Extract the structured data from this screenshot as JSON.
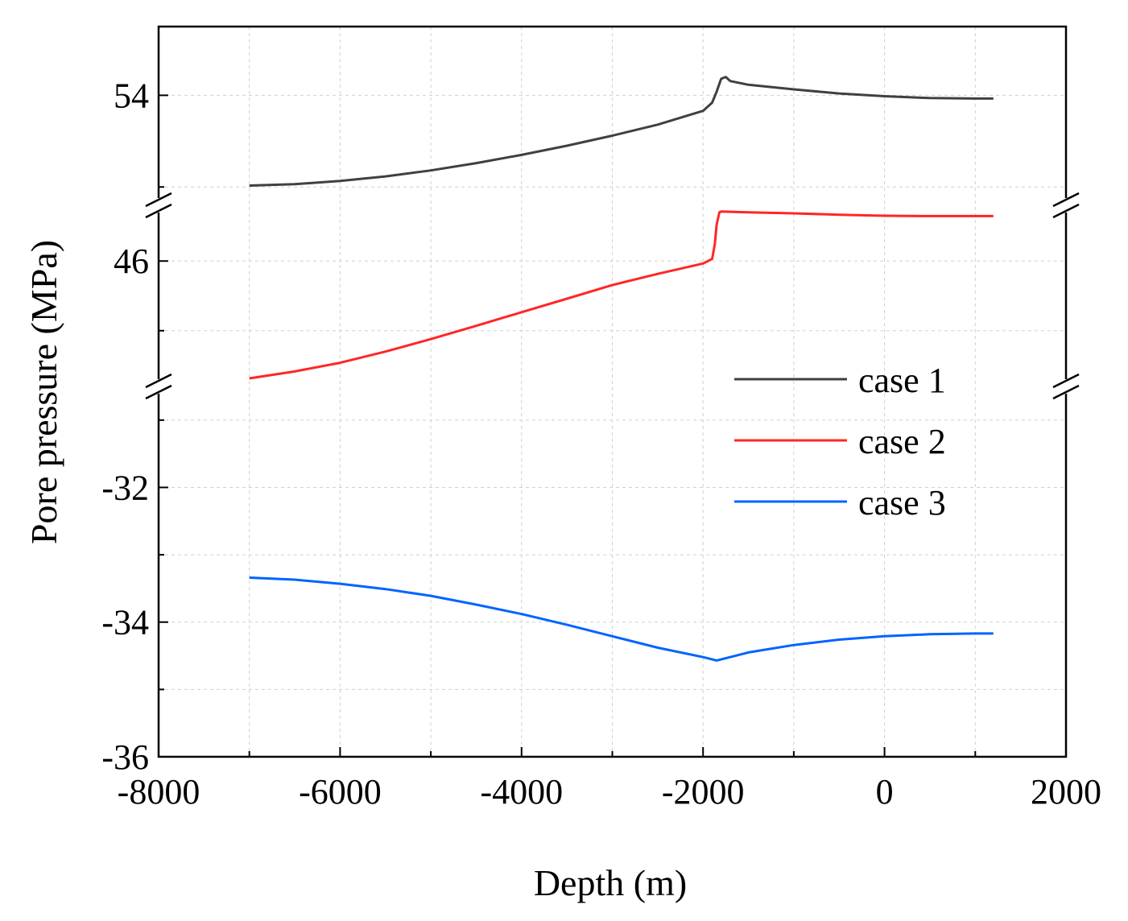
{
  "chart_data": {
    "type": "line",
    "title": "",
    "xlabel": "Depth (m)",
    "ylabel": "Pore pressure (MPa)",
    "xlim": [
      -8000,
      2000
    ],
    "xticks": [
      -8000,
      -6000,
      -4000,
      -2000,
      0,
      2000
    ],
    "xtick_labels": [
      "-8000",
      "-6000",
      "-4000",
      "-2000",
      "0",
      "2000"
    ],
    "grid": true,
    "legend_position": "right",
    "broken_y_axis": true,
    "segments": [
      {
        "name": "upper",
        "ylim": [
          51.6,
          55.5
        ],
        "ticks": [
          54
        ],
        "tick_labels": [
          "54"
        ],
        "minor_ticks": [
          52
        ]
      },
      {
        "name": "middle",
        "ylim": [
          42.4,
          47.6
        ],
        "ticks": [
          46
        ],
        "tick_labels": [
          "46"
        ],
        "minor_ticks": [
          44
        ]
      },
      {
        "name": "lower",
        "ylim": [
          -36,
          -30.5
        ],
        "ticks": [
          -36,
          -34,
          -32
        ],
        "tick_labels": [
          "-36",
          "-34",
          "-32"
        ],
        "minor_ticks": [
          -35,
          -33,
          -31
        ]
      }
    ],
    "series": [
      {
        "name": "case 1",
        "color": "#404040",
        "segment": "upper",
        "x": [
          -7000,
          -6500,
          -6000,
          -5500,
          -5000,
          -4500,
          -4000,
          -3500,
          -3000,
          -2500,
          -2000,
          -1900,
          -1850,
          -1800,
          -1750,
          -1700,
          -1500,
          -1000,
          -500,
          0,
          500,
          1000,
          1200
        ],
        "y": [
          52.03,
          52.06,
          52.13,
          52.23,
          52.36,
          52.52,
          52.7,
          52.9,
          53.12,
          53.36,
          53.66,
          53.84,
          54.08,
          54.36,
          54.4,
          54.31,
          54.23,
          54.13,
          54.04,
          53.98,
          53.94,
          53.93,
          53.93
        ]
      },
      {
        "name": "case 2",
        "color": "#ff2626",
        "segment": "middle",
        "x": [
          -7000,
          -6500,
          -6000,
          -5500,
          -5000,
          -4500,
          -4000,
          -3500,
          -3000,
          -2500,
          -2000,
          -1900,
          -1870,
          -1850,
          -1820,
          -1800,
          -1500,
          -1000,
          -500,
          0,
          500,
          1000,
          1200
        ],
        "y": [
          42.63,
          42.83,
          43.08,
          43.4,
          43.76,
          44.14,
          44.53,
          44.92,
          45.31,
          45.63,
          45.93,
          46.06,
          46.5,
          47.05,
          47.4,
          47.42,
          47.4,
          47.37,
          47.33,
          47.3,
          47.29,
          47.29,
          47.29
        ]
      },
      {
        "name": "case 3",
        "color": "#0064ff",
        "segment": "lower",
        "x": [
          -7000,
          -6500,
          -6000,
          -5500,
          -5000,
          -4500,
          -4000,
          -3500,
          -3000,
          -2500,
          -2000,
          -1850,
          -1700,
          -1500,
          -1000,
          -500,
          0,
          500,
          1000,
          1200
        ],
        "y": [
          -33.34,
          -33.37,
          -33.43,
          -33.51,
          -33.61,
          -33.74,
          -33.88,
          -34.04,
          -34.21,
          -34.38,
          -34.52,
          -34.57,
          -34.52,
          -34.45,
          -34.34,
          -34.26,
          -34.21,
          -34.18,
          -34.17,
          -34.17
        ]
      }
    ],
    "legend": [
      {
        "label": "case 1",
        "color": "#404040"
      },
      {
        "label": "case 2",
        "color": "#ff2626"
      },
      {
        "label": "case 3",
        "color": "#0064ff"
      }
    ]
  }
}
